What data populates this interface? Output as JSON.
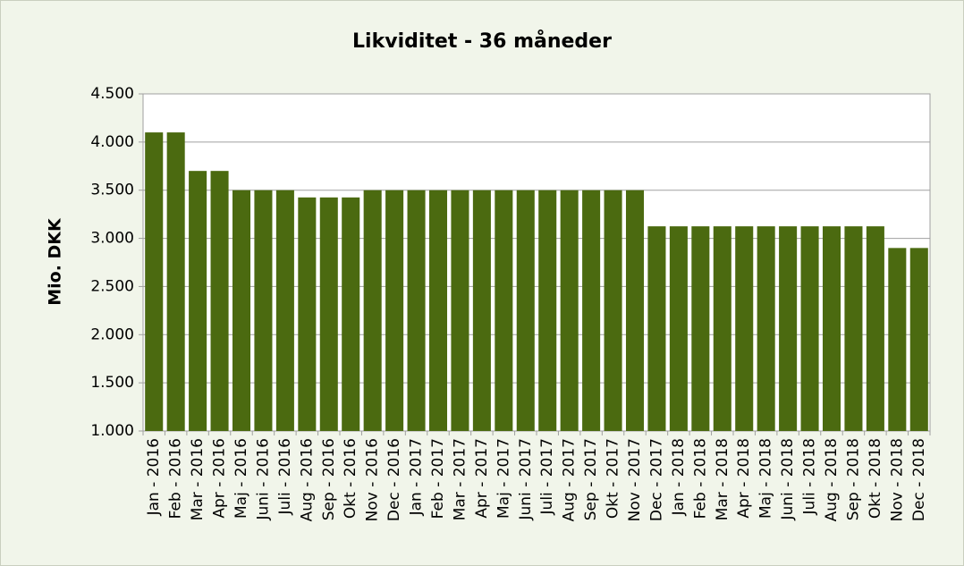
{
  "chart_data": {
    "type": "bar",
    "title": "Likviditet - 36 måneder",
    "y_label": "Mio. DKK",
    "categories": [
      "Jan - 2016",
      "Feb - 2016",
      "Mar - 2016",
      "Apr - 2016",
      "Maj - 2016",
      "Juni - 2016",
      "Juli - 2016",
      "Aug - 2016",
      "Sep - 2016",
      "Okt - 2016",
      "Nov - 2016",
      "Dec - 2016",
      "Jan - 2017",
      "Feb - 2017",
      "Mar - 2017",
      "Apr - 2017",
      "Maj - 2017",
      "Juni - 2017",
      "Juli - 2017",
      "Aug - 2017",
      "Sep - 2017",
      "Okt - 2017",
      "Nov - 2017",
      "Dec - 2017",
      "Jan - 2018",
      "Feb - 2018",
      "Mar - 2018",
      "Apr - 2018",
      "Maj - 2018",
      "Juni - 2018",
      "Juli - 2018",
      "Aug - 2018",
      "Sep - 2018",
      "Okt - 2018",
      "Nov - 2018",
      "Dec - 2018"
    ],
    "values": [
      4100,
      4100,
      3700,
      3700,
      3500,
      3500,
      3500,
      3425,
      3425,
      3425,
      3500,
      3500,
      3500,
      3500,
      3500,
      3500,
      3500,
      3500,
      3500,
      3500,
      3500,
      3500,
      3500,
      3125,
      3125,
      3125,
      3125,
      3125,
      3125,
      3125,
      3125,
      3125,
      3125,
      3125,
      2900,
      2900
    ],
    "color": "#4b6a10",
    "ylim": [
      1000,
      4500
    ],
    "yticks": [
      {
        "value": 1000,
        "label": "1.000"
      },
      {
        "value": 1500,
        "label": "1.500"
      },
      {
        "value": 2000,
        "label": "2.000"
      },
      {
        "value": 2500,
        "label": "2.500"
      },
      {
        "value": 3000,
        "label": "3.000"
      },
      {
        "value": 3500,
        "label": "3.500"
      },
      {
        "value": 4000,
        "label": "4.000"
      },
      {
        "value": 4500,
        "label": "4.500"
      }
    ],
    "grid": true
  }
}
